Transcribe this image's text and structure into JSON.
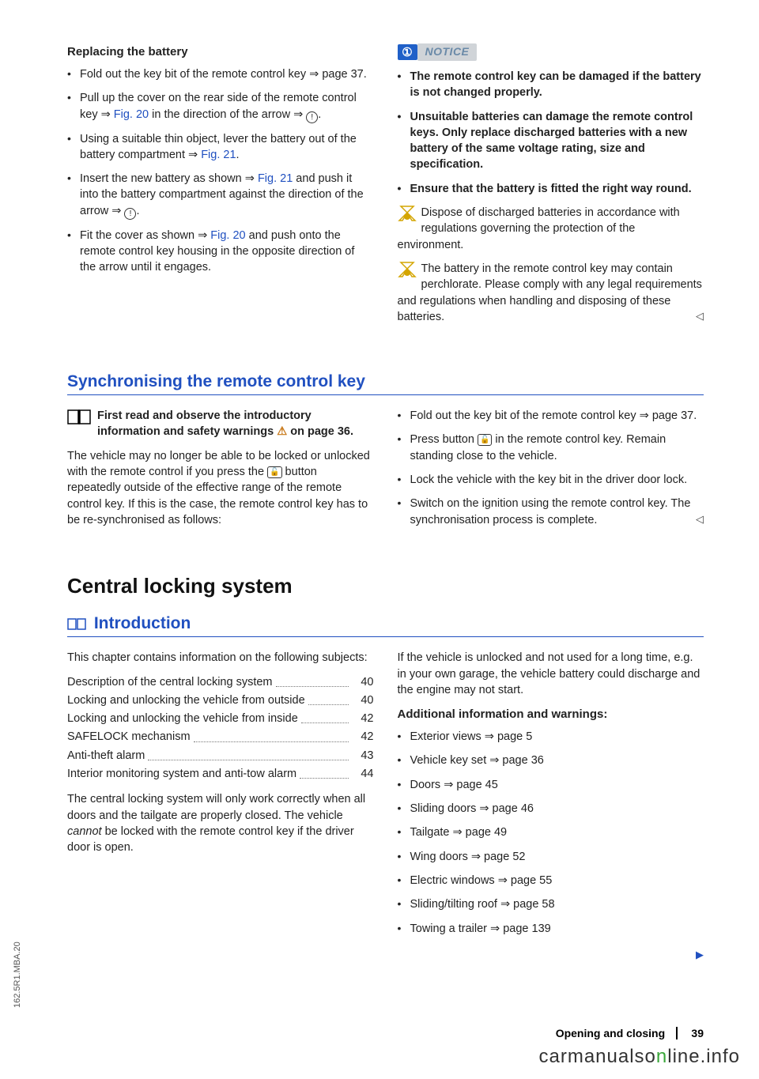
{
  "section1": {
    "title": "Replacing the battery",
    "bullets": [
      {
        "pre": "Fold out the key bit of the remote control key ⇒ page 37."
      },
      {
        "pre": "Pull up the cover on the rear side of the remote control key ⇒ ",
        "fig": "Fig. 20",
        "post": " in the direction of the arrow ⇒ "
      },
      {
        "pre": "Using a suitable thin object, lever the battery out of the battery compartment ⇒ ",
        "fig": "Fig. 21",
        "post": "."
      },
      {
        "pre": "Insert the new battery as shown ⇒ ",
        "fig": "Fig. 21",
        "post": " and push it into the battery compartment against the direction of the arrow ⇒ "
      },
      {
        "pre": "Fit the cover as shown ⇒ ",
        "fig": "Fig. 20",
        "post": " and push onto the remote control key housing in the opposite direction of the arrow until it engages."
      }
    ]
  },
  "notice": {
    "label": "NOTICE",
    "items": [
      "The remote control key can be damaged if the battery is not changed properly.",
      "Unsuitable batteries can damage the remote control keys. Only replace discharged batteries with a new battery of the same voltage rating, size and specification.",
      "Ensure that the battery is fitted the right way round."
    ],
    "eco1": "Dispose of discharged batteries in accordance with regulations governing the protection of the environment.",
    "eco2": "The battery in the remote control key may contain perchlorate. Please comply with any legal requirements and regulations when handling and disposing of these batteries."
  },
  "sync": {
    "title": "Synchronising the remote control key",
    "lead": "First read and observe the introductory information and safety warnings ",
    "lead2": " on page 36.",
    "para": "The vehicle may no longer be able to be locked or unlocked with the remote control if you press the ",
    "para2": " button repeatedly outside of the effective range of the remote control key. If this is the case, the remote control key has to be re-synchronised as follows:",
    "right": [
      "Fold out the key bit of the remote control key ⇒ page 37.",
      "Press button 🔒 in the remote control key. Remain standing close to the vehicle.",
      "Lock the vehicle with the key bit in the driver door lock.",
      "Switch on the ignition using the remote control key. The synchronisation process is complete."
    ]
  },
  "central": {
    "title": "Central locking system",
    "intro_title": "Introduction",
    "intro_text": "This chapter contains information on the following subjects:",
    "toc": [
      {
        "label": "Description of the central locking system",
        "page": "40"
      },
      {
        "label": "Locking and unlocking the vehicle from outside",
        "page": "40"
      },
      {
        "label": "Locking and unlocking the vehicle from inside",
        "page": "42"
      },
      {
        "label": "SAFELOCK mechanism",
        "page": "42"
      },
      {
        "label": "Anti-theft alarm",
        "page": "43"
      },
      {
        "label": "Interior monitoring system and anti-tow alarm",
        "page": "44"
      }
    ],
    "after": "The central locking system will only work correctly when all doors and the tailgate are properly closed. The vehicle ",
    "after_i": "cannot",
    "after2": " be locked with the remote control key if the driver door is open.",
    "rightpara": "If the vehicle is unlocked and not used for a long time, e.g. in your own garage, the vehicle battery could discharge and the engine may not start.",
    "addinfo_title": "Additional information and warnings:",
    "addinfo": [
      "Exterior views ⇒ page 5",
      "Vehicle key set ⇒ page 36",
      "Doors ⇒ page 45",
      "Sliding doors ⇒ page 46",
      "Tailgate ⇒ page 49",
      "Wing doors ⇒ page 52",
      "Electric windows ⇒ page 55",
      "Sliding/tilting roof ⇒ page 58",
      "Towing a trailer ⇒ page 139"
    ]
  },
  "footer": {
    "section": "Opening and closing",
    "page": "39"
  },
  "watermark": {
    "a": "carmanualso",
    "b": "n",
    "c": "line.info"
  },
  "side": "162.5R1.MBA.20"
}
